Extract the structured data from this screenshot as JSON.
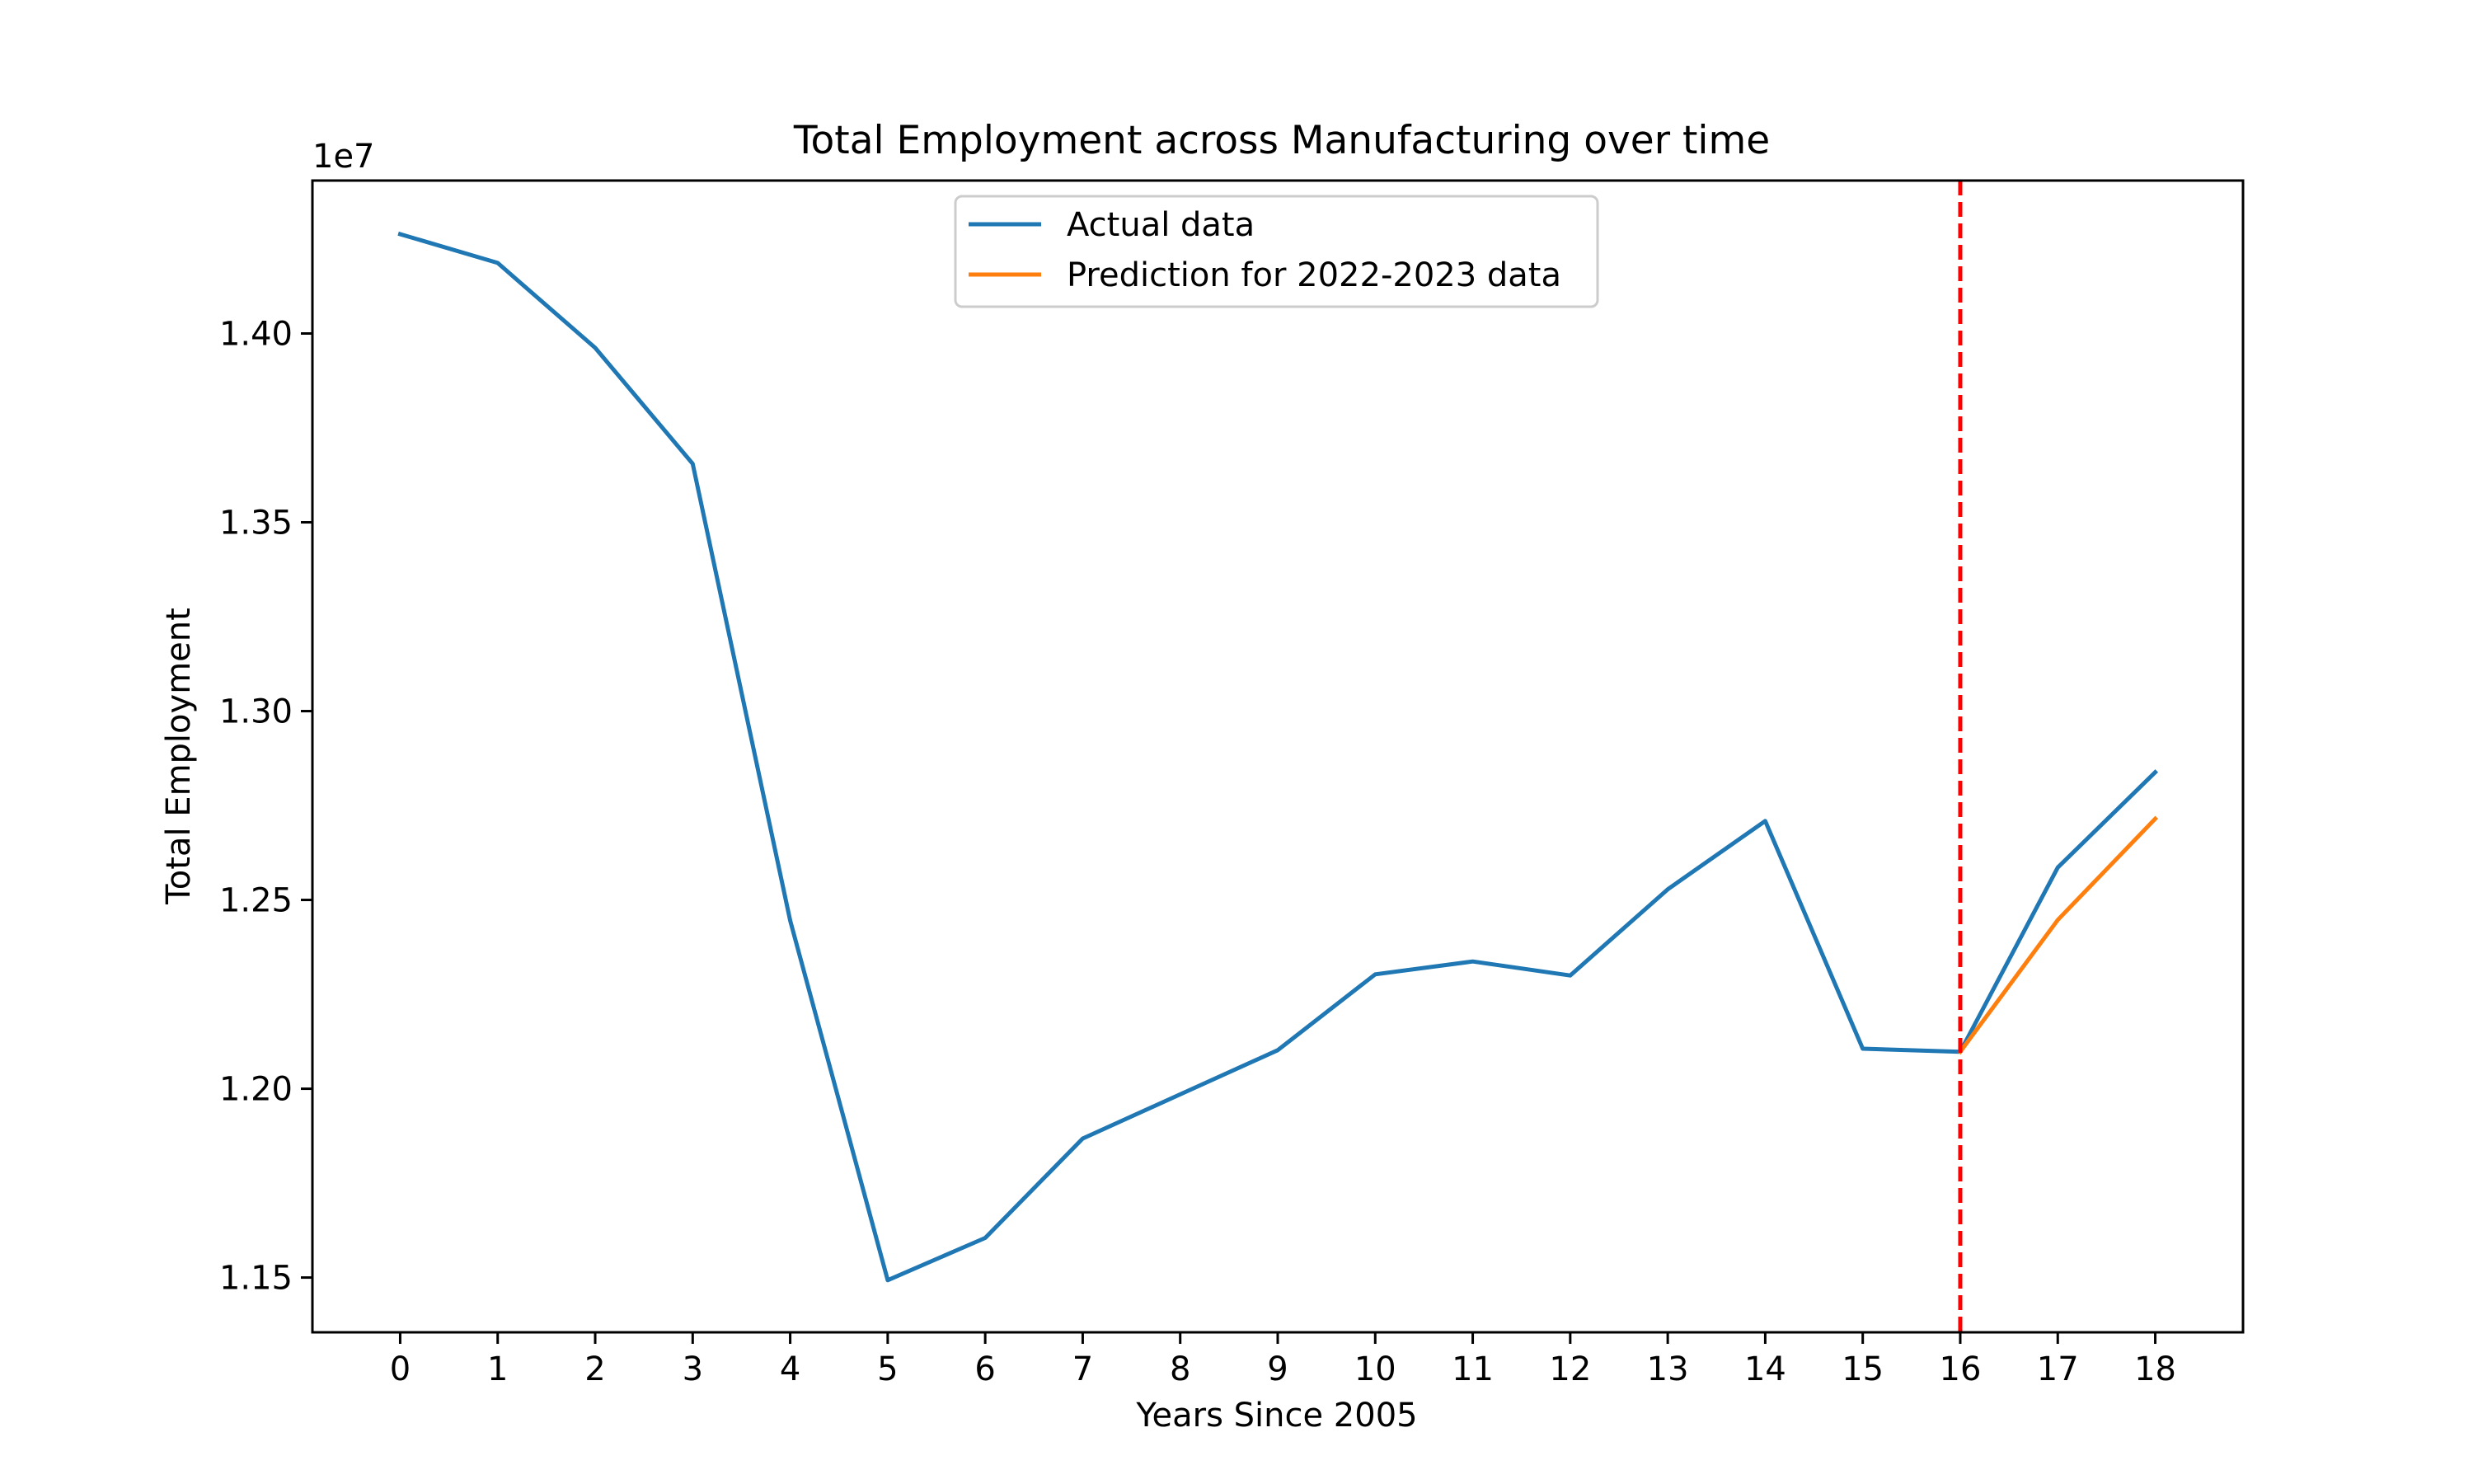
{
  "chart_data": {
    "type": "line",
    "title": "Total Employment across Manufacturing over time",
    "xlabel": "Years Since 2005",
    "ylabel": "Total Employment",
    "y_offset_label": "1e7",
    "xlim": [
      -0.9,
      18.9
    ],
    "ylim": [
      1.1355,
      1.4405
    ],
    "x_ticks": [
      0,
      1,
      2,
      3,
      4,
      5,
      6,
      7,
      8,
      9,
      10,
      11,
      12,
      13,
      14,
      15,
      16,
      17,
      18
    ],
    "x_tick_labels": [
      "0",
      "1",
      "2",
      "3",
      "4",
      "5",
      "6",
      "7",
      "8",
      "9",
      "10",
      "11",
      "12",
      "13",
      "14",
      "15",
      "16",
      "17",
      "18"
    ],
    "y_ticks": [
      1.15,
      1.2,
      1.25,
      1.3,
      1.35,
      1.4
    ],
    "y_tick_labels": [
      "1.15",
      "1.20",
      "1.25",
      "1.30",
      "1.35",
      "1.40"
    ],
    "grid": false,
    "legend_position": "top-center",
    "series": [
      {
        "name": "Actual data",
        "color": "#1f77b4",
        "x": [
          0,
          1,
          2,
          3,
          4,
          5,
          6,
          7,
          8,
          9,
          10,
          11,
          12,
          13,
          14,
          15,
          16,
          17,
          18
        ],
        "values": [
          1.4263,
          1.4187,
          1.3962,
          1.3655,
          1.2445,
          1.1493,
          1.1605,
          1.1868,
          1.1985,
          1.2102,
          1.2303,
          1.2337,
          1.23,
          1.2528,
          1.2709,
          1.2106,
          1.2098,
          1.2586,
          1.2838
        ]
      },
      {
        "name": "Prediction for 2022-2023 data",
        "color": "#ff7f0e",
        "x": [
          16,
          17,
          18
        ],
        "values": [
          1.2098,
          1.2447,
          1.2715
        ]
      }
    ],
    "vertical_line": {
      "x": 16,
      "color": "#ff0000",
      "style": "dashed"
    }
  }
}
